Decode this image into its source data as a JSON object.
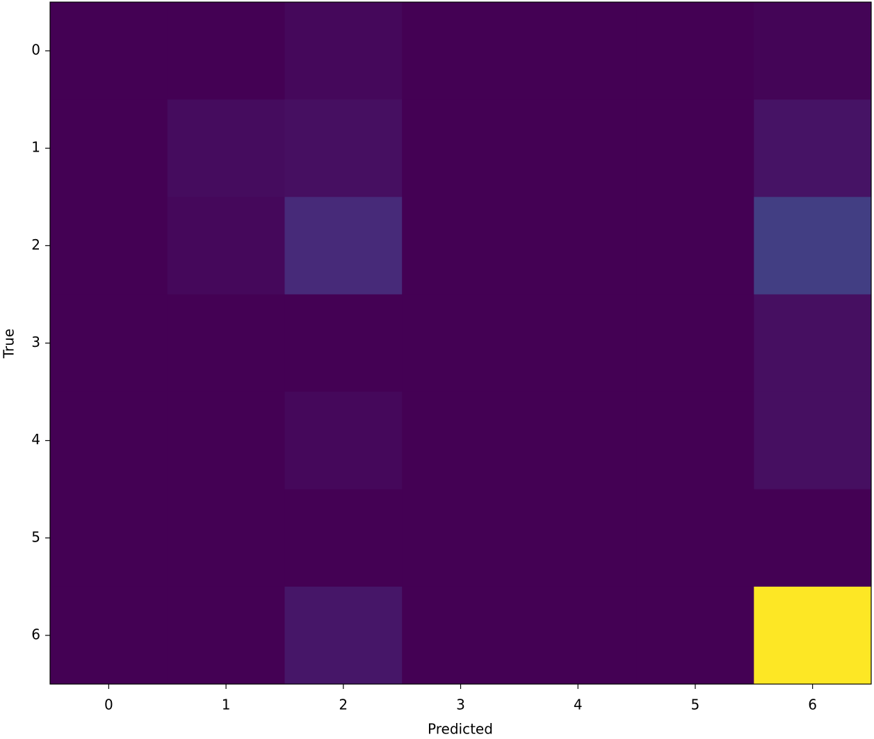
{
  "chart_data": {
    "type": "heatmap",
    "x_label": "Predicted",
    "y_label": "True",
    "x_categories": [
      "0",
      "1",
      "2",
      "3",
      "4",
      "5",
      "6"
    ],
    "y_categories": [
      "0",
      "1",
      "2",
      "3",
      "4",
      "5",
      "6"
    ],
    "colormap": "viridis",
    "values": [
      [
        0,
        0,
        2,
        0,
        0,
        0,
        1
      ],
      [
        0,
        3,
        4,
        0,
        0,
        0,
        5
      ],
      [
        0,
        2,
        12,
        0,
        0,
        0,
        18
      ],
      [
        0,
        0,
        0,
        0,
        0,
        0,
        4
      ],
      [
        0,
        0,
        2,
        0,
        0,
        0,
        4
      ],
      [
        0,
        0,
        0,
        0,
        0,
        0,
        0
      ],
      [
        0,
        0,
        6,
        0,
        0,
        0,
        100
      ]
    ]
  }
}
